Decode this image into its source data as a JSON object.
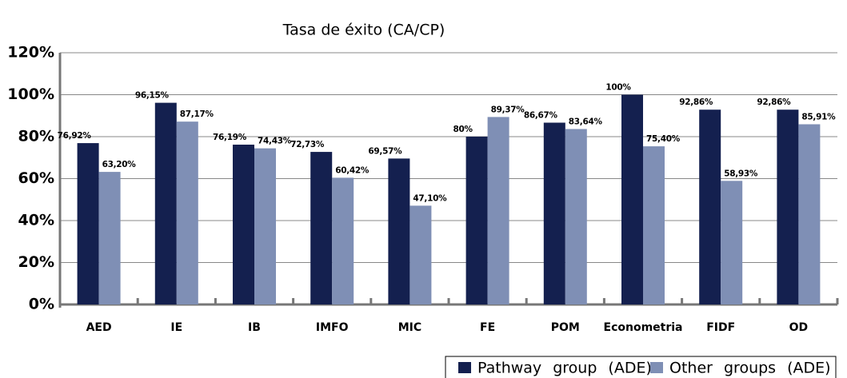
{
  "chart_data": {
    "type": "bar",
    "title": "Tasa de éxito (CA/CP)",
    "categories": [
      "AED",
      "IE",
      "IB",
      "IMFO",
      "MIC",
      "FE",
      "POM",
      "Econometria",
      "FIDF",
      "OD"
    ],
    "series": [
      {
        "name": "Pathway group (ADE)",
        "color": "#14204f",
        "values": [
          76.92,
          96.15,
          76.19,
          72.73,
          69.57,
          80,
          86.67,
          100,
          92.86,
          92.86
        ],
        "value_labels": [
          "76,92%",
          "96,15%",
          "76,19%",
          "72,73%",
          "69,57%",
          "80%",
          "86,67%",
          "100%",
          "92,86%",
          "92,86%"
        ]
      },
      {
        "name": "Other groups (ADE)",
        "color": "#7f8fb5",
        "values": [
          63.2,
          87.17,
          74.43,
          60.42,
          47.1,
          89.37,
          83.64,
          75.4,
          58.93,
          85.91
        ],
        "value_labels": [
          "63,20%",
          "87,17%",
          "74,43%",
          "60,42%",
          "47,10%",
          "89,37%",
          "83,64%",
          "75,40%",
          "58,93%",
          "85,91%"
        ]
      }
    ],
    "ylim": [
      0,
      120
    ],
    "yticks": [
      {
        "value": 0,
        "label": "0%"
      },
      {
        "value": 20,
        "label": "20%"
      },
      {
        "value": 40,
        "label": "40%"
      },
      {
        "value": 60,
        "label": "60%"
      },
      {
        "value": 80,
        "label": "80%"
      },
      {
        "value": 100,
        "label": "100%"
      },
      {
        "value": 120,
        "label": "120%"
      }
    ],
    "grid": true,
    "legend": "bottom-right"
  }
}
